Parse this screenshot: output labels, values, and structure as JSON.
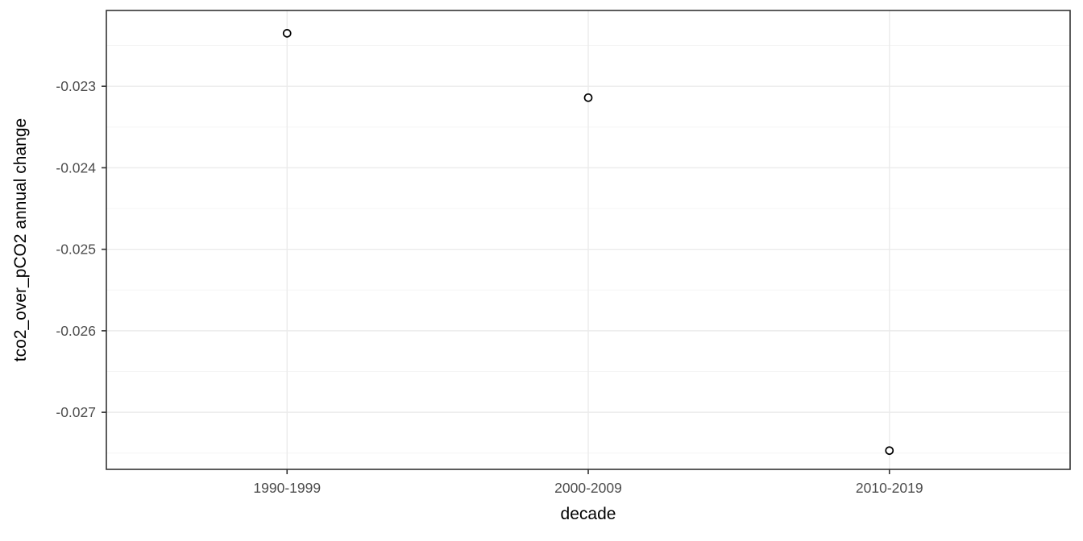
{
  "chart_data": {
    "type": "scatter",
    "title": "",
    "xlabel": "decade",
    "ylabel": "tco2_over_pCO2 annual change",
    "categories": [
      "1990-1999",
      "2000-2009",
      "2010-2019"
    ],
    "values": [
      -0.02235,
      -0.02314,
      -0.02747
    ],
    "x_positions": [
      0.1875,
      0.5,
      0.8125
    ],
    "ytick_labels": [
      "-0.023",
      "-0.024",
      "-0.025",
      "-0.026",
      "-0.027"
    ],
    "ytick_values": [
      -0.023,
      -0.024,
      -0.025,
      -0.026,
      -0.027
    ],
    "minor_step": 0.0005,
    "ylim": [
      -0.0277,
      -0.02207
    ],
    "grid": "major+minor, horizontal and vertical majors",
    "legend": "none",
    "point_style": "open-circle",
    "colors": {
      "background": "#ffffff",
      "panel_background": "#ffffff",
      "panel_border": "#333333",
      "grid_major": "#ebebeb",
      "grid_minor": "#f5f5f5",
      "tick_mark": "#333333",
      "tick_label": "#4d4d4d",
      "axis_title": "#000000",
      "point_stroke": "#000000"
    }
  }
}
